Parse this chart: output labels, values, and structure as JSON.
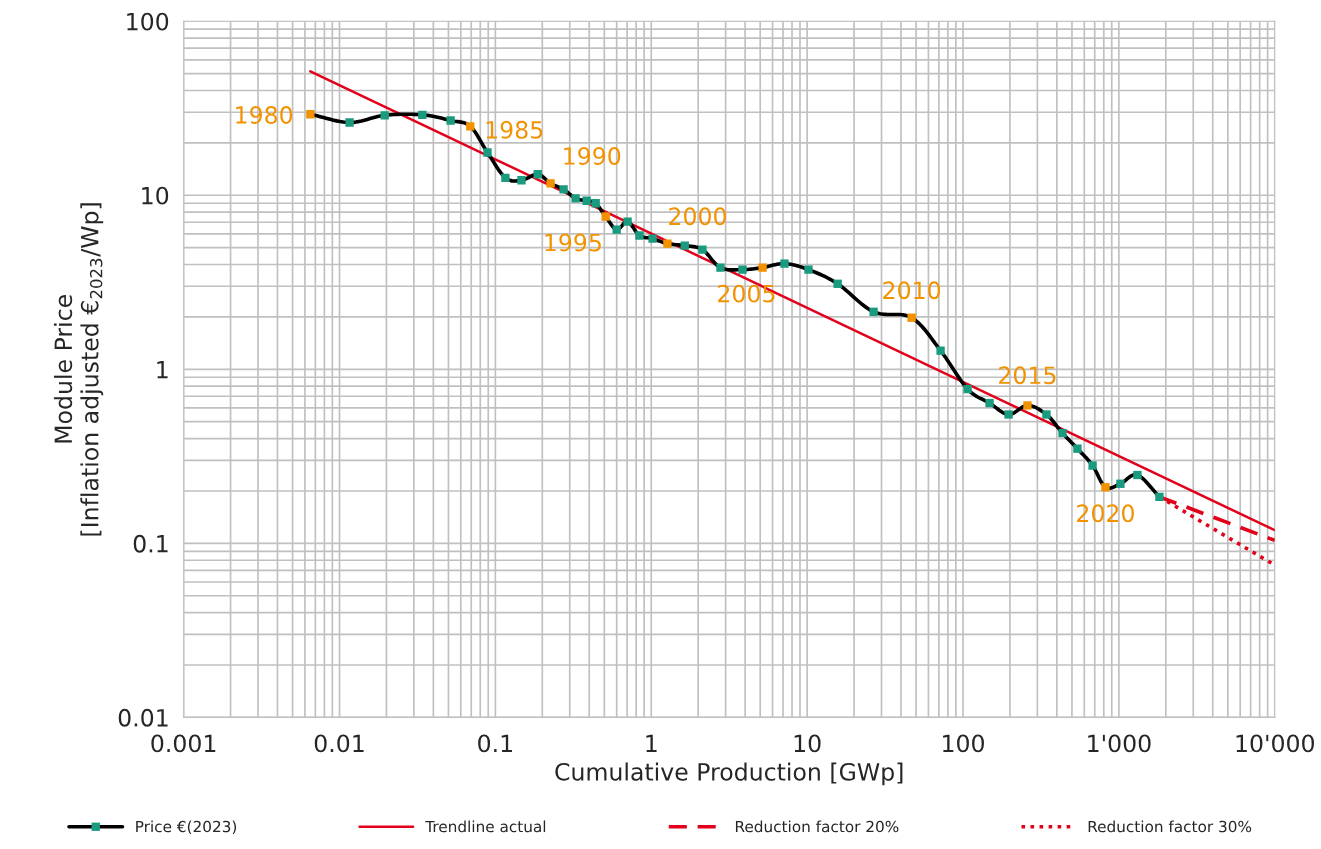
{
  "chart_data": {
    "type": "line",
    "xlabel": "Cumulative Production [GWp]",
    "ylabel": "Module Price\n[Inflation adjusted €$_{2023}$/Wp]",
    "log": "xy",
    "grid": true,
    "legend": "bottom",
    "xlim": [
      0.001,
      10000
    ],
    "xticks": [
      0.001,
      0.01,
      0.1,
      1,
      10,
      100,
      {
        "value": 1000,
        "label": "1'000"
      },
      {
        "value": 10000,
        "label": "10'000"
      }
    ],
    "ylim": [
      0.01,
      100
    ],
    "yticks": [
      0.01,
      0.1,
      1,
      10,
      100
    ],
    "series": [
      {
        "name": "Price €(2023)",
        "color": "#000000",
        "marker": "square",
        "line_style": "solid",
        "x": [
          0.0065,
          0.0116,
          0.0195,
          0.034,
          0.0516,
          0.069,
          0.089,
          0.116,
          0.147,
          0.187,
          0.226,
          0.274,
          0.327,
          0.385,
          0.44,
          0.51,
          0.6,
          0.705,
          0.84,
          1.02,
          1.27,
          1.64,
          2.13,
          2.78,
          3.85,
          5.18,
          7.16,
          10.2,
          15.7,
          26.7,
          46.8,
          71.8,
          107,
          148,
          196,
          259,
          343,
          435,
          542,
          678,
          820,
          1023,
          1315,
          1820
        ],
        "values": [
          29.2,
          26.2,
          28.8,
          29,
          26.9,
          24.9,
          17.6,
          12.6,
          12.2,
          13.2,
          11.7,
          10.8,
          9.6,
          9.3,
          9.0,
          7.55,
          6.35,
          7.06,
          5.87,
          5.64,
          5.27,
          5.14,
          4.87,
          3.84,
          3.74,
          3.84,
          4.05,
          3.74,
          3.1,
          2.14,
          1.98,
          1.28,
          0.77,
          0.64,
          0.55,
          0.62,
          0.55,
          0.43,
          0.35,
          0.28,
          0.21,
          0.22,
          0.247,
          0.185
        ],
        "colors": [
          "#f39200",
          "#1a9a7e",
          "#1a9a7e",
          "#1a9a7e",
          "#1a9a7e",
          "#f39200",
          "#1a9a7e",
          "#1a9a7e",
          "#1a9a7e",
          "#1a9a7e",
          "#f39200",
          "#1a9a7e",
          "#1a9a7e",
          "#1a9a7e",
          "#1a9a7e",
          "#f39200",
          "#1a9a7e",
          "#1a9a7e",
          "#1a9a7e",
          "#1a9a7e",
          "#f39200",
          "#1a9a7e",
          "#1a9a7e",
          "#1a9a7e",
          "#1a9a7e",
          "#f39200",
          "#1a9a7e",
          "#1a9a7e",
          "#1a9a7e",
          "#1a9a7e",
          "#f39200",
          "#1a9a7e",
          "#1a9a7e",
          "#1a9a7e",
          "#1a9a7e",
          "#f39200",
          "#1a9a7e",
          "#1a9a7e",
          "#1a9a7e",
          "#1a9a7e",
          "#f39200",
          "#1a9a7e",
          "#1a9a7e",
          "#1a9a7e"
        ]
      },
      {
        "name": "Trendline actual",
        "color": "#e2001a",
        "marker": "none",
        "line_style": "solid",
        "x": [
          0.0065,
          10000
        ],
        "values": [
          51.5,
          0.119
        ]
      },
      {
        "name": "Reduction factor 20%",
        "color": "#e2001a",
        "marker": "none",
        "line_style": "dashed",
        "x": [
          1820,
          10000
        ],
        "values": [
          0.185,
          0.104
        ]
      },
      {
        "name": "Reduction factor 30%",
        "color": "#e2001a",
        "marker": "none",
        "line_style": "dotted",
        "x": [
          1820,
          10000
        ],
        "values": [
          0.185,
          0.075
        ]
      }
    ],
    "annotations": [
      {
        "text": "1980",
        "x": 0.0065,
        "y": 29.2
      },
      {
        "text": "1985",
        "x": 0.069,
        "y": 24.9
      },
      {
        "text": "1990",
        "x": 0.226,
        "y": 11.7
      },
      {
        "text": "1995",
        "x": 0.51,
        "y": 7.55
      },
      {
        "text": "2000",
        "x": 1.27,
        "y": 5.27
      },
      {
        "text": "2005",
        "x": 5.18,
        "y": 3.84
      },
      {
        "text": "2010",
        "x": 46.8,
        "y": 1.98
      },
      {
        "text": "2015",
        "x": 259,
        "y": 0.62
      },
      {
        "text": "2020",
        "x": 820,
        "y": 0.21
      }
    ]
  }
}
